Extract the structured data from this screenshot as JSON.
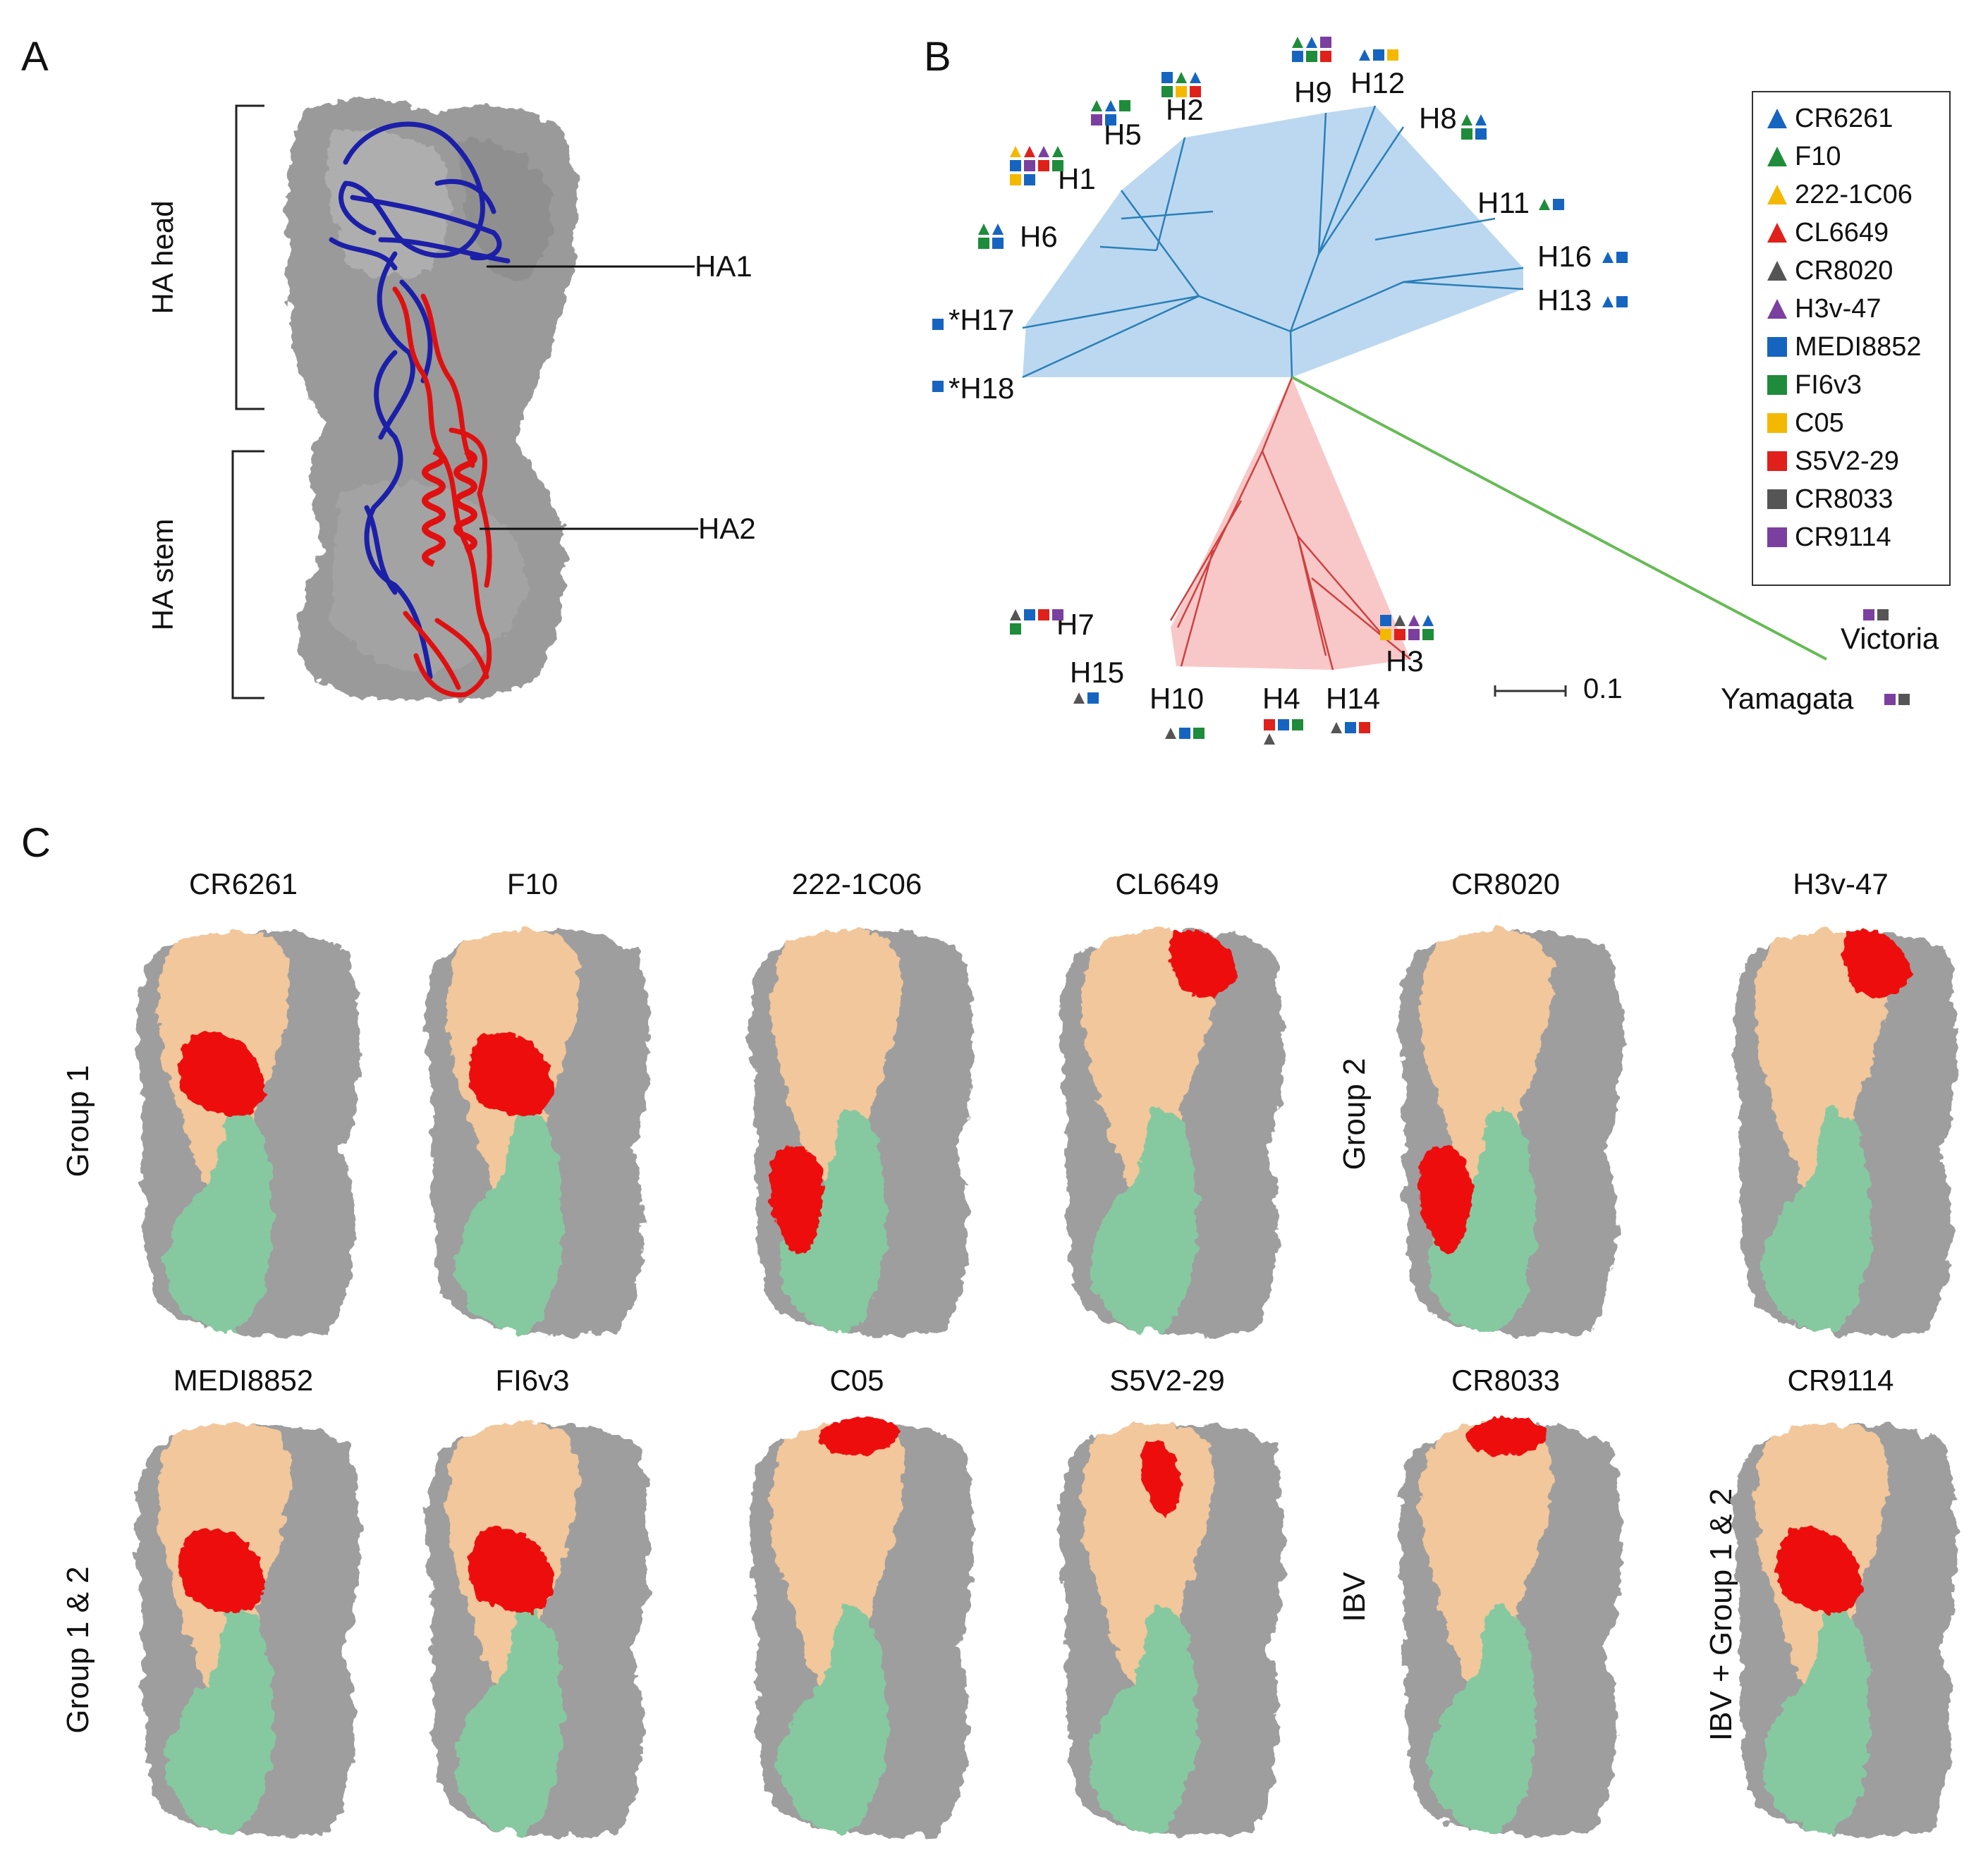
{
  "panel_labels": {
    "a": "A",
    "b": "B",
    "c": "C"
  },
  "panel_a": {
    "head_label": "HA head",
    "stem_label": "HA stem",
    "ha1_label": "HA1",
    "ha2_label": "HA2",
    "colors": {
      "surface": "#9a9a9a",
      "ha1": "#1c1fa8",
      "ha2": "#e01010"
    }
  },
  "panel_b": {
    "scale_label": "0.1",
    "group1_color": "#bcd8f0",
    "group2_color": "#f8c8c8",
    "ibv_color": "#66bb55",
    "legend": [
      {
        "name": "CR6261",
        "shape": "triangle",
        "color": "#1565c0"
      },
      {
        "name": "F10",
        "shape": "triangle",
        "color": "#1e8c3a"
      },
      {
        "name": "222-1C06",
        "shape": "triangle",
        "color": "#f5b800"
      },
      {
        "name": "CL6649",
        "shape": "triangle",
        "color": "#e0201a"
      },
      {
        "name": "CR8020",
        "shape": "triangle",
        "color": "#555555"
      },
      {
        "name": "H3v-47",
        "shape": "triangle",
        "color": "#7b3fa0"
      },
      {
        "name": "MEDI8852",
        "shape": "square",
        "color": "#1565c0"
      },
      {
        "name": "FI6v3",
        "shape": "square",
        "color": "#1e8c3a"
      },
      {
        "name": "C05",
        "shape": "square",
        "color": "#f5b800"
      },
      {
        "name": "S5V2-29",
        "shape": "square",
        "color": "#e0201a"
      },
      {
        "name": "CR8033",
        "shape": "square",
        "color": "#555555"
      },
      {
        "name": "CR9114",
        "shape": "square",
        "color": "#7b3fa0"
      }
    ],
    "tips": [
      {
        "label": "H1",
        "markers": [
          "t:222-1C06",
          "t:CL6649",
          "t:H3v-47",
          "t:F10",
          "s:MEDI8852",
          "s:CR9114",
          "s:S5V2-29",
          "s:FI6v3",
          "s:C05",
          "s:MEDI8852"
        ]
      },
      {
        "label": "H5",
        "markers": [
          "t:F10",
          "t:CR6261",
          "s:FI6v3",
          "s:CR9114",
          "s:MEDI8852"
        ]
      },
      {
        "label": "H2",
        "markers": [
          "s:MEDI8852",
          "t:F10",
          "t:CR6261",
          "s:FI6v3",
          "s:C05",
          "s:S5V2-29"
        ]
      },
      {
        "label": "H9",
        "markers": [
          "t:F10",
          "t:CR6261",
          "s:CR9114",
          "s:MEDI8852",
          "s:FI6v3",
          "s:S5V2-29"
        ]
      },
      {
        "label": "H12",
        "markers": [
          "t:CR6261",
          "s:MEDI8852",
          "s:C05"
        ]
      },
      {
        "label": "H8",
        "markers": [
          "t:F10",
          "t:CR6261",
          "s:FI6v3",
          "s:MEDI8852"
        ]
      },
      {
        "label": "H6",
        "markers": [
          "t:F10",
          "t:CR6261",
          "s:FI6v3",
          "s:MEDI8852"
        ]
      },
      {
        "label": "H11",
        "markers": [
          "t:F10",
          "s:MEDI8852"
        ]
      },
      {
        "label": "H16",
        "markers": [
          "t:CR6261",
          "s:MEDI8852"
        ]
      },
      {
        "label": "H13",
        "markers": [
          "t:CR6261",
          "s:MEDI8852"
        ]
      },
      {
        "label": "*H17",
        "markers": [
          "s:MEDI8852"
        ]
      },
      {
        "label": "*H18",
        "markers": [
          "s:MEDI8852"
        ]
      },
      {
        "label": "H7",
        "markers": [
          "t:CR8020",
          "s:MEDI8852",
          "s:S5V2-29",
          "s:CR9114",
          "s:FI6v3"
        ]
      },
      {
        "label": "H15",
        "markers": [
          "t:CR8020",
          "s:MEDI8852"
        ]
      },
      {
        "label": "H10",
        "markers": [
          "t:CR8020",
          "s:MEDI8852",
          "s:FI6v3"
        ]
      },
      {
        "label": "H4",
        "markers": [
          "s:S5V2-29",
          "s:MEDI8852",
          "s:FI6v3",
          "t:CR8020"
        ]
      },
      {
        "label": "H14",
        "markers": [
          "t:CR8020",
          "s:MEDI8852",
          "s:S5V2-29"
        ]
      },
      {
        "label": "H3",
        "markers": [
          "s:MEDI8852",
          "t:CR8020",
          "t:H3v-47",
          "t:CR6261",
          "s:C05",
          "s:S5V2-29",
          "s:CR9114",
          "s:FI6v3"
        ]
      },
      {
        "label": "Victoria",
        "markers": [
          "s:CR9114",
          "s:CR8033"
        ]
      },
      {
        "label": "Yamagata",
        "markers": [
          "s:CR9114",
          "s:CR8033"
        ]
      }
    ]
  },
  "panel_c": {
    "colors": {
      "trimer": "#9e9e9e",
      "ha1": "#f2c79b",
      "ha2": "#86c9a0",
      "epitope": "#ee1111"
    },
    "row_groups": [
      {
        "label": "Group 1"
      },
      {
        "label": "Group 2"
      },
      {
        "label": "Group 1 & 2"
      },
      {
        "label": "IBV"
      },
      {
        "label": "IBV + Group 1 & 2"
      }
    ],
    "antibodies": [
      {
        "name": "CR6261",
        "epitope": "stem"
      },
      {
        "name": "F10",
        "epitope": "stem"
      },
      {
        "name": "222-1C06",
        "epitope": "lower stem"
      },
      {
        "name": "CL6649",
        "epitope": "head side"
      },
      {
        "name": "CR8020",
        "epitope": "lower stem"
      },
      {
        "name": "H3v-47",
        "epitope": "head side"
      },
      {
        "name": "MEDI8852",
        "epitope": "stem"
      },
      {
        "name": "FI6v3",
        "epitope": "stem"
      },
      {
        "name": "C05",
        "epitope": "head top"
      },
      {
        "name": "S5V2-29",
        "epitope": "head interface"
      },
      {
        "name": "CR8033",
        "epitope": "head top"
      },
      {
        "name": "CR9114",
        "epitope": "stem"
      }
    ]
  }
}
